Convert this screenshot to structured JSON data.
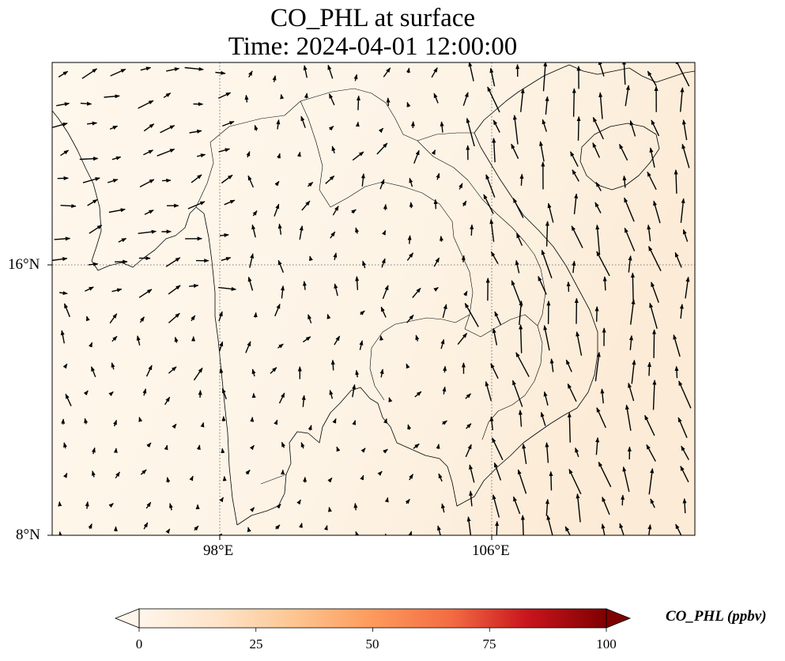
{
  "title": {
    "line1": "CO_PHL at surface",
    "line2": "Time: 2024-04-01 12:00:00"
  },
  "axes": {
    "x_ticks": [
      "98°E",
      "106°E"
    ],
    "y_ticks": [
      "16°N",
      "8°N"
    ]
  },
  "colorbar": {
    "label": "CO_PHL (ppbv)",
    "ticks": [
      "0",
      "25",
      "50",
      "75",
      "100"
    ],
    "min": 0,
    "max": 100,
    "extend": "both",
    "colormap": [
      "#fff5eb",
      "#fdd9b4",
      "#fdad6b",
      "#f3704a",
      "#d42b2a",
      "#a00000",
      "#7f0000"
    ]
  },
  "map": {
    "lon_range": [
      93,
      112
    ],
    "lat_range": [
      8,
      22
    ],
    "graticule": "dotted",
    "field_color": "#fdf4e7",
    "coastline_color": "#000000"
  },
  "chart_data": {
    "type": "heatmap",
    "variable": "CO_PHL",
    "units": "ppbv",
    "field_value_range": [
      0,
      2
    ],
    "vectors": "wind arrows, predominantly southerly over Gulf of Tonkin and South China Sea, westerly over Bay of Bengal"
  }
}
